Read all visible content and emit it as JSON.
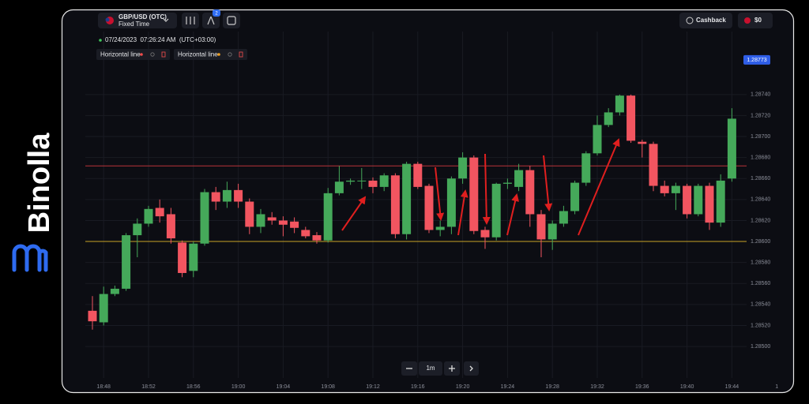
{
  "logo": {
    "text": "Binolla"
  },
  "toolbar": {
    "pair": "GBP/USD (OTC)",
    "mode": "Fixed Time",
    "badge": "2",
    "cashback": "Cashback",
    "balance": "$0"
  },
  "timestamp": "07/24/2023  07:26:24 AM  (UTC+03:00)",
  "drawings": [
    {
      "label": "Horizontal line",
      "color": "#ef4a4a"
    },
    {
      "label": "Horizontal line",
      "color": "#f0a020"
    }
  ],
  "timeframe": "1m",
  "chart_data": {
    "type": "candlestick",
    "open": [
      1.28534,
      1.28523,
      1.2855,
      1.28555,
      1.28606,
      1.28617,
      1.28632,
      1.28626,
      1.28599,
      1.28572,
      1.28598,
      1.28647,
      1.28638,
      1.28649,
      1.28638,
      1.28614,
      1.28623,
      1.2862,
      1.28619,
      1.28611,
      1.28606,
      1.28601,
      1.28646,
      1.28657,
      1.28658,
      1.28658,
      1.28652,
      1.28663,
      1.28607,
      1.28674,
      1.28653,
      1.28611,
      1.28614,
      1.2866,
      1.2868,
      1.28611,
      1.28604,
      1.28655,
      1.28652,
      1.28668,
      1.28626,
      1.28602,
      1.28617,
      1.28629,
      1.28656,
      1.28684,
      1.28711,
      1.28723,
      1.28739,
      1.28695,
      1.28693,
      1.28653,
      1.28646,
      1.28653,
      1.28626,
      1.28653,
      1.28618,
      1.2866
    ],
    "close": [
      1.28524,
      1.2855,
      1.28555,
      1.28606,
      1.28617,
      1.28631,
      1.28624,
      1.28603,
      1.2857,
      1.28598,
      1.28647,
      1.28638,
      1.28649,
      1.28638,
      1.28614,
      1.28626,
      1.2862,
      1.28616,
      1.28613,
      1.28605,
      1.28601,
      1.28646,
      1.28657,
      1.28658,
      1.28658,
      1.28652,
      1.28663,
      1.28607,
      1.28674,
      1.28652,
      1.28611,
      1.28614,
      1.2866,
      1.2868,
      1.2861,
      1.28604,
      1.28655,
      1.28656,
      1.28668,
      1.28626,
      1.28602,
      1.28617,
      1.28629,
      1.28656,
      1.28684,
      1.28711,
      1.28723,
      1.28739,
      1.28696,
      1.28693,
      1.28653,
      1.28646,
      1.28653,
      1.28626,
      1.28653,
      1.28618,
      1.28658,
      1.28717
    ],
    "high": [
      1.28548,
      1.28557,
      1.28558,
      1.28608,
      1.28622,
      1.28634,
      1.2864,
      1.28632,
      1.28601,
      1.286,
      1.2865,
      1.28652,
      1.28657,
      1.28655,
      1.28641,
      1.28631,
      1.28628,
      1.28624,
      1.28623,
      1.28614,
      1.28609,
      1.28651,
      1.28672,
      1.2866,
      1.2867,
      1.28661,
      1.28665,
      1.28665,
      1.28676,
      1.28676,
      1.28655,
      1.2862,
      1.28662,
      1.28685,
      1.28682,
      1.28614,
      1.28656,
      1.2866,
      1.28674,
      1.28672,
      1.2863,
      1.2862,
      1.28634,
      1.28658,
      1.28686,
      1.2872,
      1.28727,
      1.2874,
      1.2874,
      1.28697,
      1.28695,
      1.28658,
      1.28656,
      1.28655,
      1.28655,
      1.28656,
      1.28664,
      1.28727
    ],
    "low": [
      1.28516,
      1.2852,
      1.28548,
      1.28553,
      1.28585,
      1.28614,
      1.28618,
      1.28598,
      1.28566,
      1.28566,
      1.28596,
      1.2863,
      1.28632,
      1.28632,
      1.28607,
      1.28608,
      1.28616,
      1.28605,
      1.28608,
      1.28603,
      1.28598,
      1.28599,
      1.28644,
      1.28654,
      1.2865,
      1.28646,
      1.28648,
      1.28603,
      1.28602,
      1.2865,
      1.28608,
      1.28605,
      1.28607,
      1.28655,
      1.28607,
      1.28593,
      1.28601,
      1.2865,
      1.28648,
      1.28614,
      1.28585,
      1.28592,
      1.28614,
      1.28626,
      1.28653,
      1.28682,
      1.28709,
      1.2872,
      1.28694,
      1.2868,
      1.28648,
      1.28643,
      1.2863,
      1.28622,
      1.28624,
      1.28611,
      1.28614,
      1.28657
    ],
    "up_color": "#45a95a",
    "down_color": "#f25560",
    "ylim": [
      1.2847,
      1.288
    ],
    "yticks": [
      {
        "value": 1.285,
        "label": "1.28500"
      },
      {
        "value": 1.2852,
        "label": "1.28520"
      },
      {
        "value": 1.2854,
        "label": "1.28540"
      },
      {
        "value": 1.2856,
        "label": "1.28560"
      },
      {
        "value": 1.2858,
        "label": "1.28580"
      },
      {
        "value": 1.286,
        "label": "1.28600"
      },
      {
        "value": 1.2862,
        "label": "1.28620"
      },
      {
        "value": 1.2864,
        "label": "1.28640"
      },
      {
        "value": 1.2866,
        "label": "1.28660"
      },
      {
        "value": 1.2868,
        "label": "1.28680"
      },
      {
        "value": 1.287,
        "label": "1.28700"
      },
      {
        "value": 1.2872,
        "label": "1.28720"
      },
      {
        "value": 1.2874,
        "label": "1.28740"
      }
    ],
    "xticks": [
      "18:48",
      "18:52",
      "18:56",
      "19:00",
      "19:04",
      "19:08",
      "19:12",
      "19:16",
      "19:20",
      "19:24",
      "19:28",
      "19:32",
      "19:36",
      "19:40",
      "19:44",
      "1"
    ],
    "horizontal_lines": [
      {
        "value": 1.28672,
        "color": "#b8343a"
      },
      {
        "value": 1.286,
        "color": "#c9a227"
      }
    ],
    "current_price": {
      "value": 1.28773,
      "label": "1.28773"
    },
    "grid": true
  }
}
